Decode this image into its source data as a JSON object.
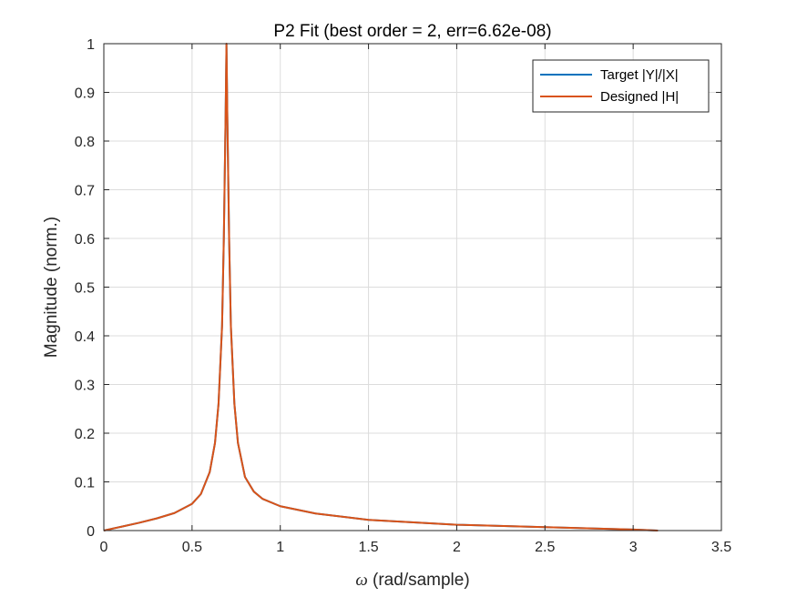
{
  "chart_data": {
    "type": "line",
    "title": "P2 Fit (best order = 2, err=6.62e-08)",
    "xlabel_symbol": "ω",
    "xlabel_text": " (rad/sample)",
    "ylabel": "Magnitude (norm.)",
    "xlim": [
      0,
      3.5
    ],
    "ylim": [
      0,
      1
    ],
    "xticks": [
      0,
      0.5,
      1,
      1.5,
      2,
      2.5,
      3,
      3.5
    ],
    "xtick_labels": [
      "0",
      "0.5",
      "1",
      "1.5",
      "2",
      "2.5",
      "3",
      "3.5"
    ],
    "yticks": [
      0,
      0.1,
      0.2,
      0.3,
      0.4,
      0.5,
      0.6,
      0.7,
      0.8,
      0.9,
      1
    ],
    "ytick_labels": [
      "0",
      "0.1",
      "0.2",
      "0.3",
      "0.4",
      "0.5",
      "0.6",
      "0.7",
      "0.8",
      "0.9",
      "1"
    ],
    "grid": true,
    "legend_position": "top-right",
    "series": [
      {
        "name": "Target |Y|/|X|",
        "color": "#0072BD",
        "points": [
          [
            0,
            0
          ],
          [
            0.1,
            0.008
          ],
          [
            0.2,
            0.016
          ],
          [
            0.3,
            0.025
          ],
          [
            0.4,
            0.036
          ],
          [
            0.5,
            0.055
          ],
          [
            0.55,
            0.075
          ],
          [
            0.6,
            0.12
          ],
          [
            0.63,
            0.18
          ],
          [
            0.65,
            0.26
          ],
          [
            0.67,
            0.42
          ],
          [
            0.68,
            0.6
          ],
          [
            0.69,
            0.85
          ],
          [
            0.695,
            1.0
          ],
          [
            0.7,
            0.85
          ],
          [
            0.71,
            0.6
          ],
          [
            0.72,
            0.42
          ],
          [
            0.74,
            0.26
          ],
          [
            0.76,
            0.18
          ],
          [
            0.8,
            0.11
          ],
          [
            0.85,
            0.08
          ],
          [
            0.9,
            0.065
          ],
          [
            1.0,
            0.05
          ],
          [
            1.2,
            0.035
          ],
          [
            1.5,
            0.022
          ],
          [
            2.0,
            0.012
          ],
          [
            2.5,
            0.007
          ],
          [
            3.0,
            0.002
          ],
          [
            3.14,
            0.0
          ]
        ]
      },
      {
        "name": "Designed |H|",
        "color": "#D95319",
        "points": [
          [
            0,
            0
          ],
          [
            0.1,
            0.008
          ],
          [
            0.2,
            0.016
          ],
          [
            0.3,
            0.025
          ],
          [
            0.4,
            0.036
          ],
          [
            0.5,
            0.055
          ],
          [
            0.55,
            0.075
          ],
          [
            0.6,
            0.12
          ],
          [
            0.63,
            0.18
          ],
          [
            0.65,
            0.26
          ],
          [
            0.67,
            0.42
          ],
          [
            0.68,
            0.6
          ],
          [
            0.69,
            0.85
          ],
          [
            0.695,
            1.0
          ],
          [
            0.7,
            0.85
          ],
          [
            0.71,
            0.6
          ],
          [
            0.72,
            0.42
          ],
          [
            0.74,
            0.26
          ],
          [
            0.76,
            0.18
          ],
          [
            0.8,
            0.11
          ],
          [
            0.85,
            0.08
          ],
          [
            0.9,
            0.065
          ],
          [
            1.0,
            0.05
          ],
          [
            1.2,
            0.035
          ],
          [
            1.5,
            0.022
          ],
          [
            2.0,
            0.012
          ],
          [
            2.5,
            0.007
          ],
          [
            3.0,
            0.002
          ],
          [
            3.14,
            0.0
          ]
        ]
      }
    ]
  }
}
